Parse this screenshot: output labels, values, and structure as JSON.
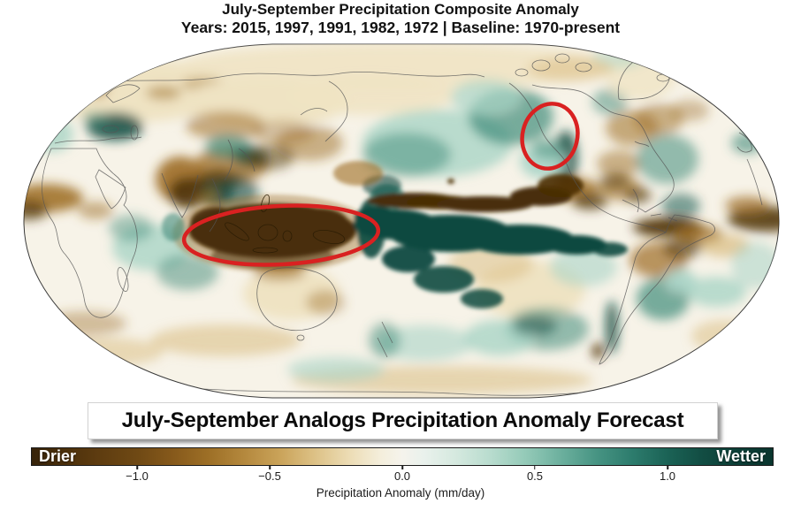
{
  "title": "July-September Precipitation Composite Anomaly",
  "subtitle": "Years: 2015, 1997, 1991, 1982, 1972 | Baseline: 1970-present",
  "banner": "July-September Analogs Precipitation Anomaly Forecast",
  "colorbar": {
    "left_label": "Drier",
    "right_label": "Wetter",
    "axis_label": "Precipitation Anomaly (mm/day)",
    "ticks": [
      "−1.0",
      "−0.5",
      "0.0",
      "0.5",
      "1.0"
    ],
    "tick_values": [
      -1.0,
      -0.5,
      0.0,
      0.5,
      1.0
    ],
    "range": [
      -1.4,
      1.4
    ]
  },
  "map": {
    "type": "global precipitation anomaly composite map",
    "projection": "robinson-like, Pacific-centered",
    "highlighted_regions": [
      {
        "name": "maritime-continent-dry-anomaly",
        "appearance": "large red ellipse around strong dry (dark brown) anomaly over Indonesia / Maritime Continent"
      },
      {
        "name": "western-north-america-wet-anomaly",
        "appearance": "small red ellipse around wet (teal) anomaly over southwestern North America"
      }
    ],
    "key_features": [
      "dark teal wet band along equatorial Pacific",
      "dark brown dry band just north of the equatorial wet band",
      "dark brown dry blob over Maritime Continent"
    ]
  },
  "colors": {
    "highlight_red": "#d92121",
    "drier_dark": "#4a2f07",
    "wetter_dark": "#0c4a40",
    "map_base": "#f7f3e8"
  }
}
